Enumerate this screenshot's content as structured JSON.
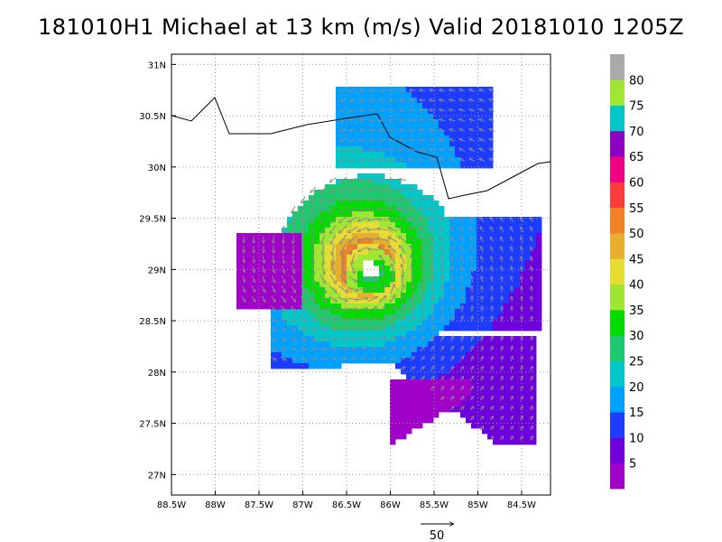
{
  "title": "181010H1 Michael at 13 km (m/s) Valid 20181010 1205Z",
  "map": {
    "lon_labels": [
      "88.5W",
      "88W",
      "87.5W",
      "87W",
      "86.5W",
      "86W",
      "85.5W",
      "85W",
      "84.5W"
    ],
    "lat_labels": [
      "31N",
      "30.5N",
      "30N",
      "29.5N",
      "29N",
      "28.5N",
      "28N",
      "27.5N",
      "27N"
    ],
    "lon_values": [
      -88.5,
      -88,
      -87.5,
      -87,
      -86.5,
      -86,
      -85.5,
      -85,
      -84.5
    ],
    "lat_values": [
      31,
      30.5,
      30,
      29.5,
      29,
      28.5,
      28,
      27.5,
      27
    ],
    "grid": true,
    "vector_reference": "50"
  },
  "colorbar": {
    "labels": [
      "5",
      "10",
      "15",
      "20",
      "25",
      "30",
      "35",
      "40",
      "45",
      "50",
      "55",
      "60",
      "65",
      "70",
      "75",
      "80"
    ],
    "colors": [
      "#a000c8",
      "#6e00dc",
      "#1e3cff",
      "#00a0ff",
      "#00c8c8",
      "#1ec86e",
      "#00dc00",
      "#a0e632",
      "#e6dc32",
      "#e6af2d",
      "#f08228",
      "#fa3c3c",
      "#f00082",
      "#8c00c0",
      "#00c8c8",
      "#a0e632",
      "#aaaaaa"
    ]
  }
}
